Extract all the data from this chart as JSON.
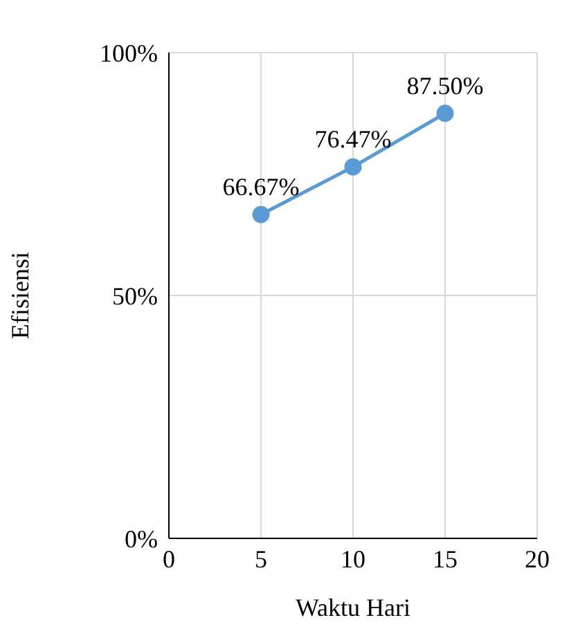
{
  "chart_data": {
    "type": "line",
    "xlabel": "Waktu Hari",
    "ylabel": "Efisiensi",
    "x": [
      5,
      10,
      15
    ],
    "series": [
      {
        "color": "#5b9bd5",
        "values": [
          66.67,
          76.47,
          87.5
        ],
        "value_labels": [
          "66.67%",
          "76.47%",
          "87.50%"
        ]
      }
    ],
    "xlim": [
      0,
      20
    ],
    "xticks": [
      0,
      5,
      10,
      15,
      20
    ],
    "ylim": [
      0,
      100
    ],
    "yticks": [
      {
        "value": 0,
        "label": "0%"
      },
      {
        "value": 50,
        "label": "50%"
      },
      {
        "value": 100,
        "label": "100%"
      }
    ],
    "grid": true,
    "marker": "circle",
    "line_style": "solid"
  }
}
